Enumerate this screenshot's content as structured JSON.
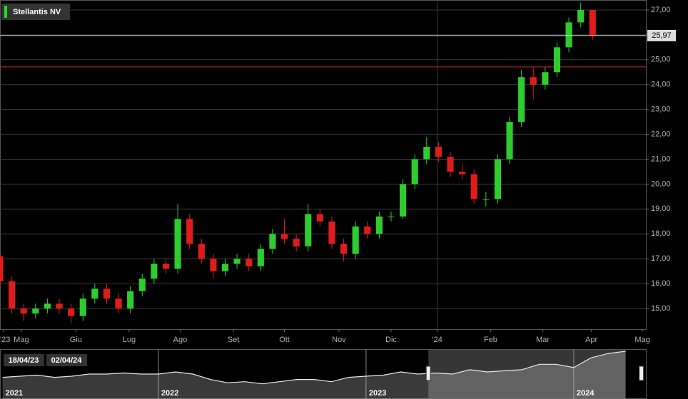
{
  "chart_data": {
    "type": "candlestick",
    "title": "Stellantis NV",
    "legend_color": "#22dd22",
    "up_color": "#2ecc2e",
    "down_color": "#e01b1b",
    "x": [
      0,
      1,
      2,
      3,
      4,
      5,
      6,
      7,
      8,
      9,
      10,
      11,
      12,
      13,
      14,
      15,
      16,
      17,
      18,
      19,
      20,
      21,
      22,
      23,
      24,
      25,
      26,
      27,
      28,
      29,
      30,
      31,
      32,
      33,
      34,
      35,
      36,
      37,
      38,
      39,
      40,
      41,
      42,
      43,
      44,
      45,
      46,
      47,
      48,
      49,
      50
    ],
    "open": [
      17.1,
      16.1,
      15.0,
      14.8,
      15.0,
      15.2,
      15.0,
      14.7,
      15.4,
      15.8,
      15.4,
      15.0,
      15.7,
      16.2,
      16.8,
      16.6,
      18.6,
      17.6,
      17.0,
      16.5,
      16.8,
      17.0,
      16.7,
      17.4,
      18.0,
      17.8,
      17.5,
      18.8,
      18.5,
      17.6,
      17.2,
      18.3,
      18.0,
      18.7,
      18.7,
      20.0,
      21.0,
      21.5,
      21.1,
      20.5,
      20.4,
      19.4,
      19.4,
      21.0,
      22.5,
      24.3,
      24.0,
      24.5,
      25.5,
      26.5,
      27.0
    ],
    "high": [
      17.3,
      16.3,
      15.2,
      15.2,
      15.4,
      15.4,
      15.2,
      15.6,
      16.0,
      16.0,
      15.6,
      15.9,
      16.4,
      17.0,
      17.0,
      19.2,
      18.8,
      17.8,
      17.2,
      17.0,
      17.2,
      17.2,
      17.6,
      18.2,
      18.6,
      18.0,
      19.2,
      19.0,
      18.7,
      17.8,
      18.5,
      18.5,
      18.9,
      18.9,
      20.2,
      21.2,
      21.9,
      21.7,
      21.3,
      20.8,
      20.6,
      19.7,
      21.2,
      22.7,
      24.6,
      24.7,
      24.7,
      25.7,
      26.7,
      27.3,
      27.0
    ],
    "low": [
      15.9,
      14.8,
      14.5,
      14.6,
      14.8,
      14.8,
      14.4,
      14.5,
      15.2,
      15.2,
      14.8,
      14.8,
      15.5,
      16.0,
      16.4,
      16.4,
      17.4,
      16.8,
      16.2,
      16.3,
      16.6,
      16.5,
      16.5,
      17.2,
      17.6,
      17.3,
      17.3,
      18.3,
      17.4,
      16.9,
      17.0,
      17.8,
      17.8,
      18.5,
      18.6,
      19.8,
      20.8,
      20.9,
      20.3,
      20.2,
      19.2,
      19.1,
      19.2,
      20.8,
      22.3,
      23.4,
      23.8,
      24.3,
      25.3,
      26.3,
      25.8
    ],
    "close": [
      16.1,
      15.0,
      14.8,
      15.0,
      15.2,
      15.0,
      14.7,
      15.4,
      15.8,
      15.4,
      15.0,
      15.7,
      16.2,
      16.8,
      16.6,
      18.6,
      17.6,
      17.0,
      16.5,
      16.8,
      17.0,
      16.7,
      17.4,
      18.0,
      17.8,
      17.5,
      18.8,
      18.5,
      17.6,
      17.2,
      18.3,
      18.0,
      18.7,
      18.7,
      20.0,
      21.0,
      21.5,
      21.1,
      20.5,
      20.4,
      19.4,
      19.4,
      21.0,
      22.5,
      24.3,
      24.0,
      24.5,
      25.5,
      26.5,
      27.0,
      25.97
    ],
    "xlim": [
      0,
      54.5
    ],
    "xticks": [
      {
        "value": 0.3,
        "label": "'23"
      },
      {
        "value": 1.8,
        "label": "Mag"
      },
      {
        "value": 6.4,
        "label": "Giu"
      },
      {
        "value": 10.9,
        "label": "Lug"
      },
      {
        "value": 15.2,
        "label": "Ago"
      },
      {
        "value": 19.7,
        "label": "Set"
      },
      {
        "value": 24.0,
        "label": "Ott"
      },
      {
        "value": 28.6,
        "label": "Nov"
      },
      {
        "value": 33.0,
        "label": "Dic"
      },
      {
        "value": 36.9,
        "label": "'24"
      },
      {
        "value": 41.4,
        "label": "Feb"
      },
      {
        "value": 45.8,
        "label": "Mar"
      },
      {
        "value": 49.9,
        "label": "Apr"
      },
      {
        "value": 54.2,
        "label": "Mag"
      }
    ],
    "x_gridlines": [
      36.9
    ],
    "ylim": [
      14.17,
      27.4
    ],
    "yticks": [
      {
        "value": 15,
        "label": "15,00"
      },
      {
        "value": 16,
        "label": "16,00"
      },
      {
        "value": 17,
        "label": "17,00"
      },
      {
        "value": 18,
        "label": "18,00"
      },
      {
        "value": 19,
        "label": "19,00"
      },
      {
        "value": 20,
        "label": "20,00"
      },
      {
        "value": 21,
        "label": "21,00"
      },
      {
        "value": 22,
        "label": "22,00"
      },
      {
        "value": 23,
        "label": "23,00"
      },
      {
        "value": 24,
        "label": "24,00"
      },
      {
        "value": 25,
        "label": "25,00"
      },
      {
        "value": 26,
        "label": "26,00"
      },
      {
        "value": 27,
        "label": "27,00"
      }
    ],
    "grid": true,
    "last_price": {
      "value": 25.97,
      "label": "25,97"
    },
    "last_price_color": "#dddddd",
    "reference_line": 24.71,
    "reference_color": "#cc2222",
    "navigator": {
      "type": "area",
      "color": "#e8e8e8",
      "x": [
        3,
        4,
        5,
        6,
        7,
        8,
        9,
        10,
        11,
        12,
        13,
        14,
        15,
        16,
        17,
        18,
        19,
        20,
        21,
        22,
        23,
        24,
        25,
        26,
        27,
        28,
        29,
        30,
        31,
        32,
        33,
        34,
        35,
        36,
        37,
        38,
        39
      ],
      "values": [
        15,
        15.5,
        16,
        15,
        15.5,
        16.5,
        16.5,
        17,
        16.5,
        16.5,
        17.5,
        16.5,
        14,
        12.5,
        13,
        12,
        13,
        14,
        14,
        13,
        15,
        15.5,
        16,
        17.5,
        16.5,
        17,
        16.5,
        18.5,
        17.5,
        18,
        18.5,
        21,
        21,
        19.5,
        24,
        26,
        27
      ],
      "xlim": [
        2.85,
        40.17
      ],
      "ylim": [
        5,
        28
      ],
      "xticks": [
        {
          "value": 3,
          "label": "2021"
        },
        {
          "value": 12,
          "label": "2022"
        },
        {
          "value": 24,
          "label": "2023"
        },
        {
          "value": 36,
          "label": "2024"
        }
      ],
      "selection": [
        27.6,
        39
      ],
      "range_start": "18/04/23",
      "range_end": "02/04/24"
    }
  }
}
